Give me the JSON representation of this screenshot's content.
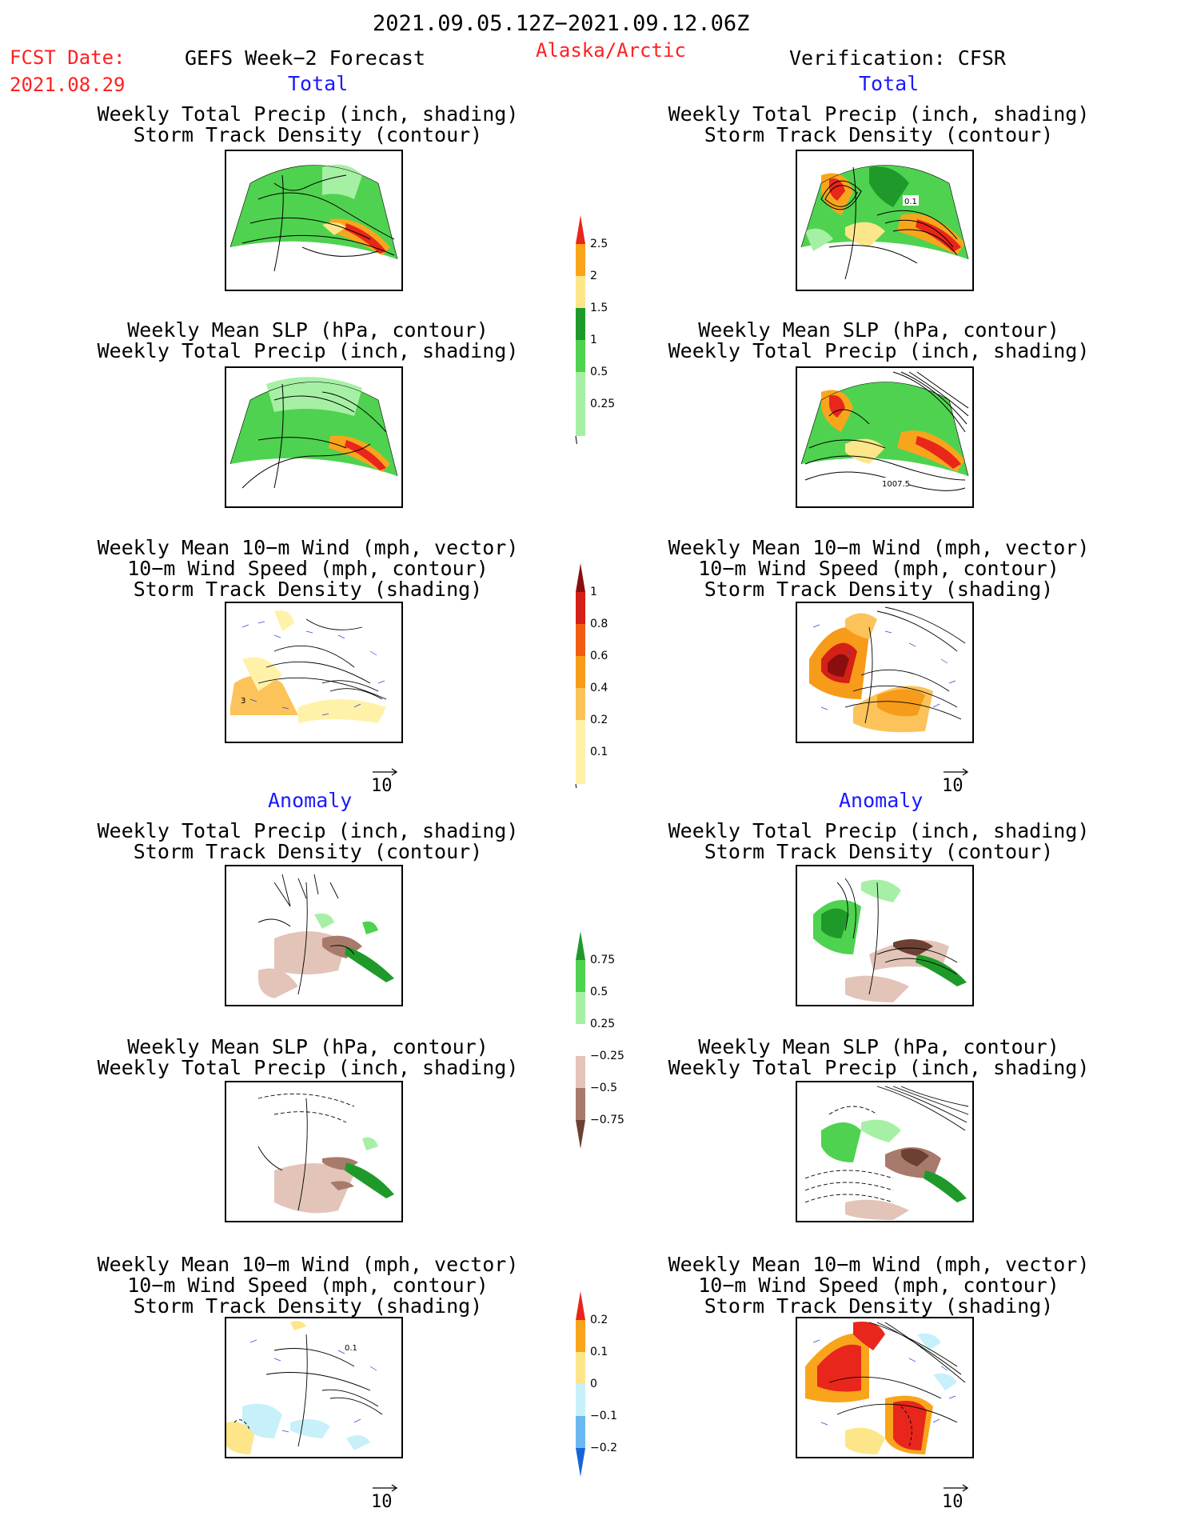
{
  "header": {
    "period": "2021.09.05.12Z−2021.09.12.06Z",
    "fcst_label": "FCST Date:",
    "fcst_date": "2021.08.29",
    "model": "GEFS Week−2 Forecast",
    "region": "Alaska/Arctic",
    "verification": "Verification: CFSR"
  },
  "sections": {
    "total": "Total",
    "anomaly": "Anomaly"
  },
  "titles": {
    "precip_track": [
      "Weekly Total Precip (inch, shading)",
      "Storm Track Density (contour)"
    ],
    "slp_precip": [
      "Weekly Mean SLP (hPa, contour)",
      "Weekly Total Precip (inch, shading)"
    ],
    "wind_track": [
      "Weekly Mean 10−m Wind (mph, vector)",
      "10−m Wind Speed (mph, contour)",
      "Storm Track Density (shading)"
    ]
  },
  "vector_ref": "10",
  "map_labels": {
    "obs_precip_track": "0.1",
    "obs_slp": "1007.5",
    "fcst_wind": "3",
    "fcst_wind_anom": "0.1"
  },
  "colorbars": {
    "precip_total": {
      "labels": [
        "2.5",
        "2",
        "1.5",
        "1",
        "0.5",
        "0.25"
      ],
      "colors": [
        "#e8261c",
        "#f9a51c",
        "#fde68a",
        "#1f9a2a",
        "#4fd24f",
        "#a6f0a6"
      ]
    },
    "track_total": {
      "labels": [
        "1",
        "0.8",
        "0.6",
        "0.4",
        "0.2",
        "0.1"
      ],
      "colors": [
        "#8a0e0e",
        "#d42016",
        "#f25d14",
        "#f79b1a",
        "#fbc35a",
        "#fff2a8"
      ]
    },
    "precip_anom": {
      "labels": [
        "0.75",
        "0.5",
        "0.25",
        "−0.25",
        "−0.5",
        "−0.75"
      ],
      "colors": [
        "#1f9a2a",
        "#4fd24f",
        "#a6f0a6",
        "#ffffff",
        "#e3c4b8",
        "#a87a6c",
        "#6d4034"
      ]
    },
    "track_anom": {
      "labels": [
        "0.2",
        "0.1",
        "0",
        "−0.1",
        "−0.2"
      ],
      "colors": [
        "#e8261c",
        "#f9a51c",
        "#fde68a",
        "#c7f0fb",
        "#6bb8f0",
        "#1565d8"
      ]
    }
  }
}
